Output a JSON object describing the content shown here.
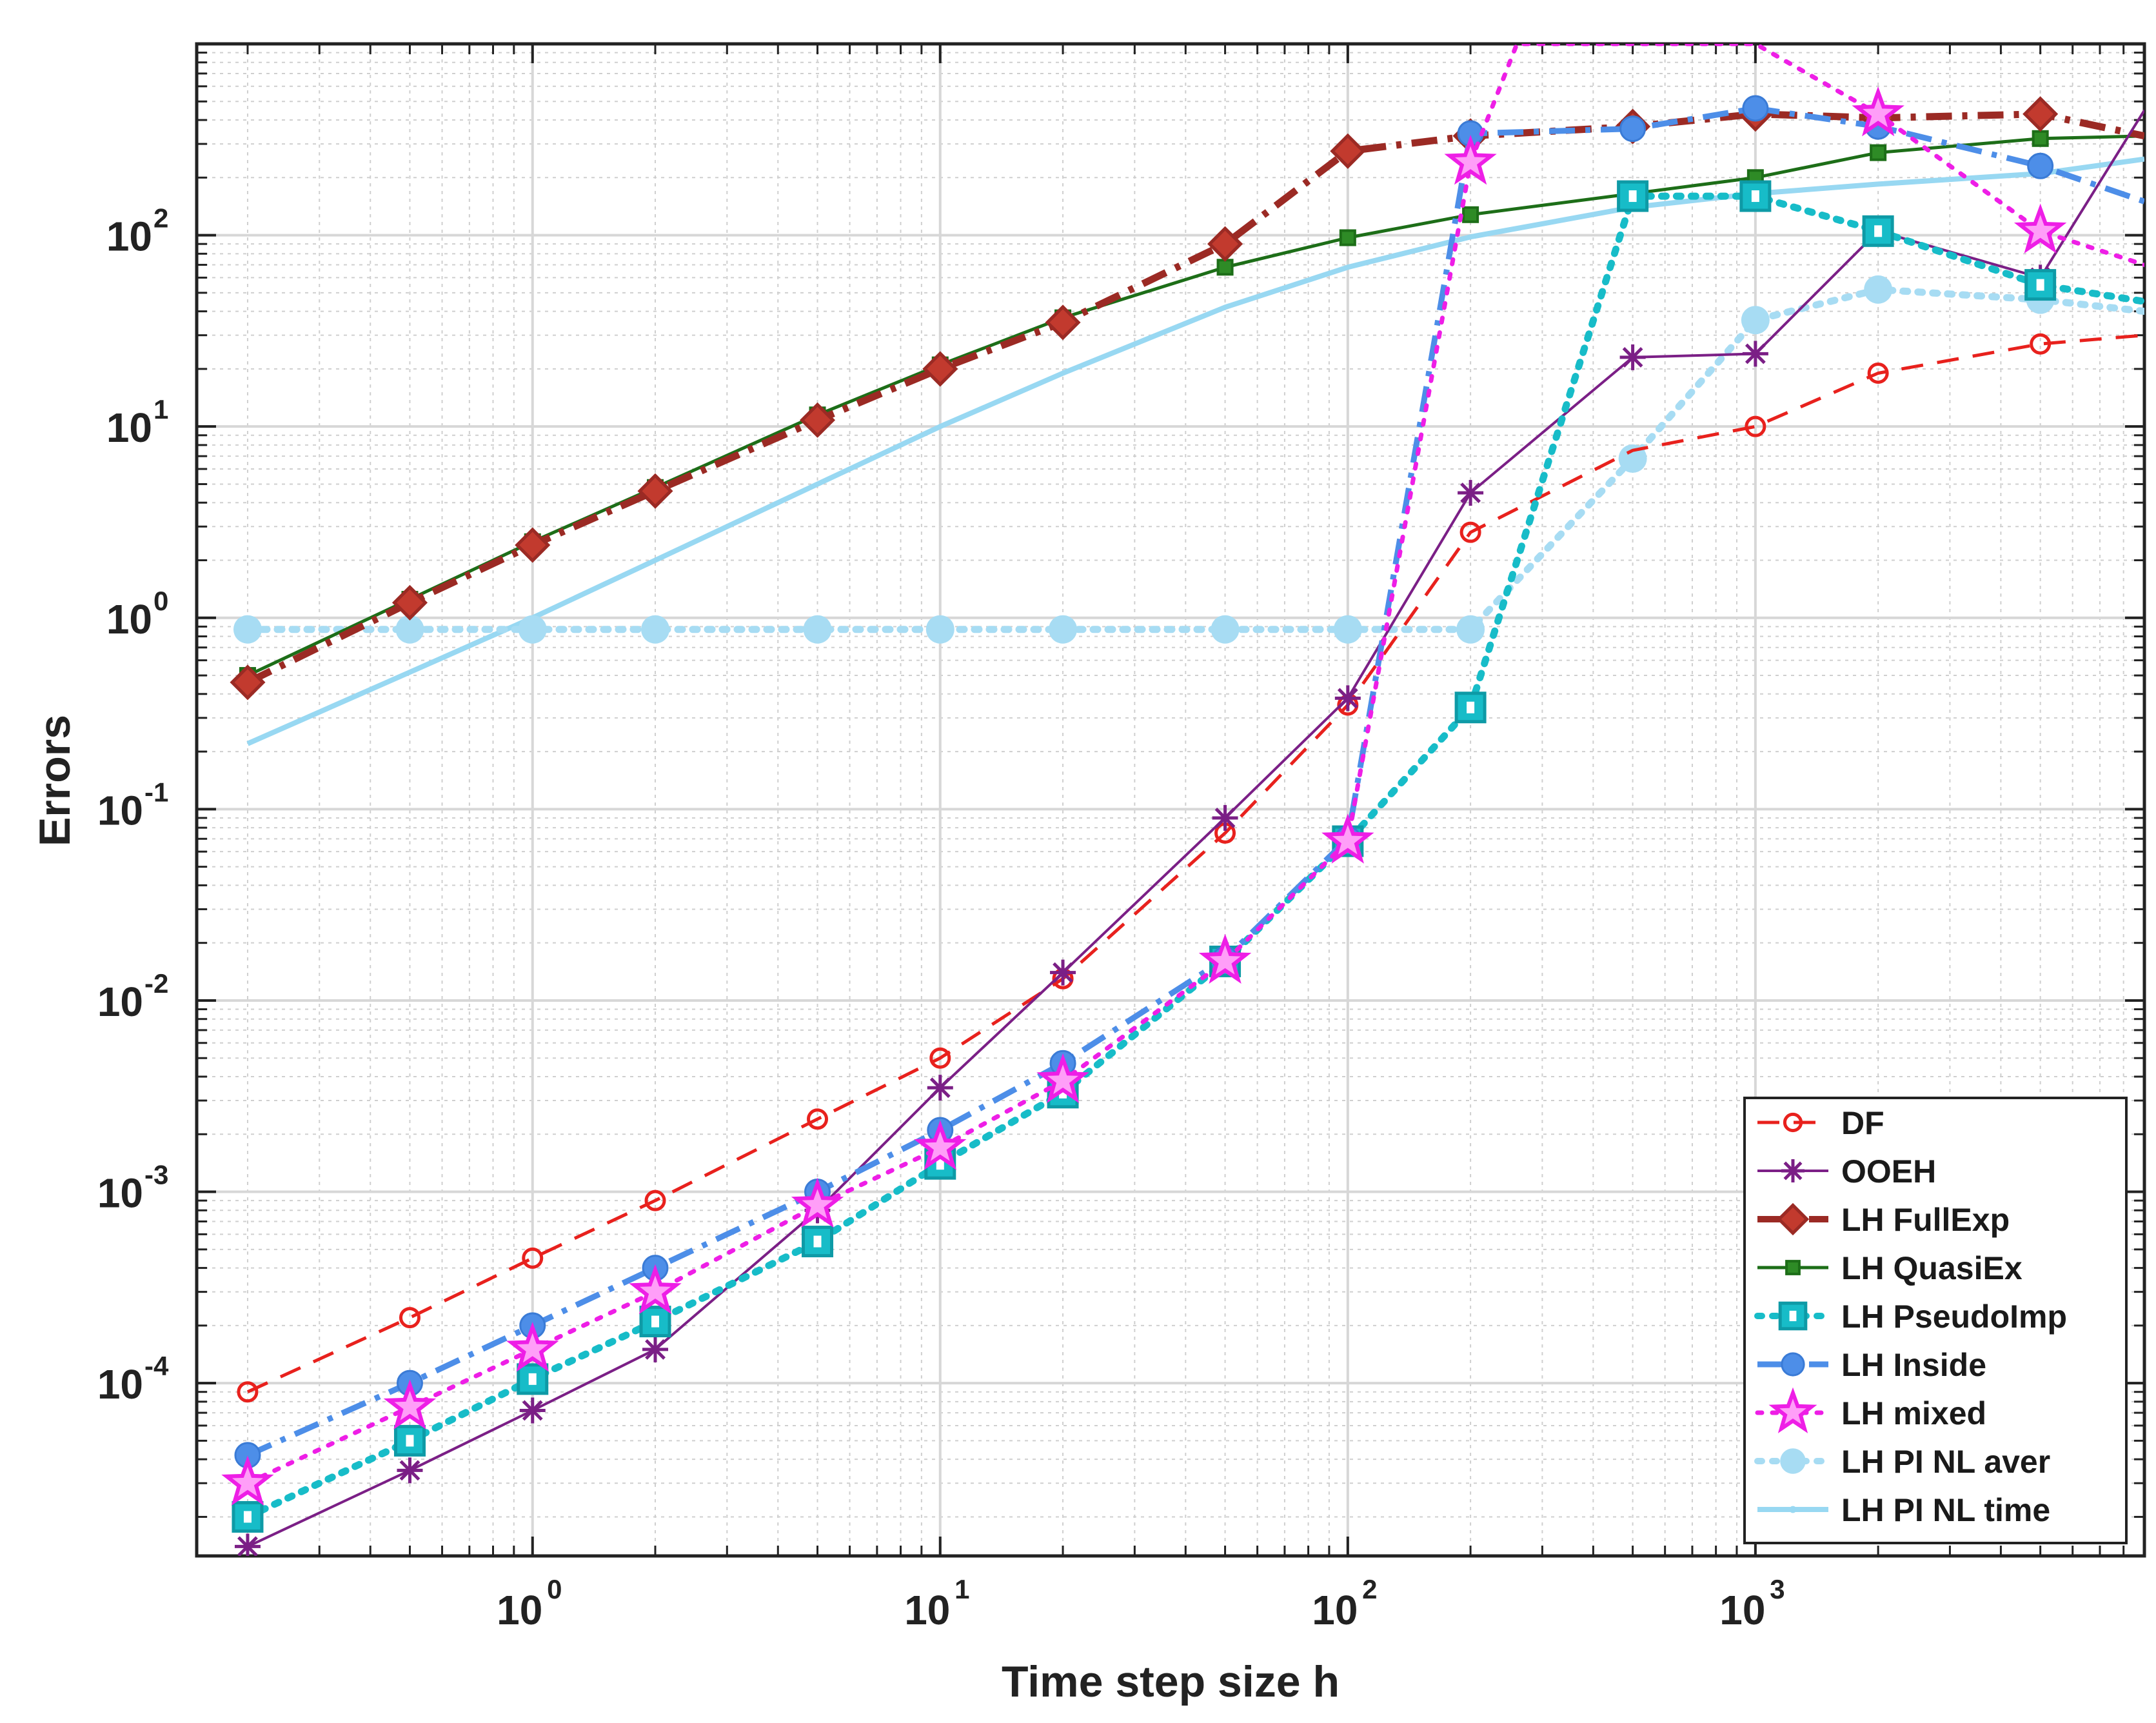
{
  "chart_data": {
    "type": "line",
    "title": "",
    "xlabel": "Time step size h",
    "ylabel": "Errors",
    "xscale": "log",
    "yscale": "log",
    "xlim": [
      0.15,
      9000
    ],
    "ylim": [
      1.25e-05,
      1000
    ],
    "grid": true,
    "minor_grid": true,
    "legend_position": "bottom-right",
    "x_ticks": [
      {
        "base": "10",
        "exp": "0",
        "value": 1
      },
      {
        "base": "10",
        "exp": "1",
        "value": 10
      },
      {
        "base": "10",
        "exp": "2",
        "value": 100
      },
      {
        "base": "10",
        "exp": "3",
        "value": 1000
      }
    ],
    "y_ticks": [
      {
        "base": "10",
        "exp": "-4",
        "value": 0.0001
      },
      {
        "base": "10",
        "exp": "-3",
        "value": 0.001
      },
      {
        "base": "10",
        "exp": "-2",
        "value": 0.01
      },
      {
        "base": "10",
        "exp": "-1",
        "value": 0.1
      },
      {
        "base": "10",
        "exp": "0",
        "value": 1
      },
      {
        "base": "10",
        "exp": "1",
        "value": 10
      },
      {
        "base": "10",
        "exp": "2",
        "value": 100
      }
    ],
    "series": [
      {
        "name": "DF",
        "color": "#e8211d",
        "dash": "dash",
        "marker": "circle",
        "width": 5,
        "x": [
          0.2,
          0.5,
          1,
          2,
          5,
          10,
          20,
          50,
          100,
          200,
          500,
          1000,
          2000,
          5000,
          9000
        ],
        "y": [
          9e-05,
          0.00022,
          0.00045,
          0.0009,
          0.0024,
          0.005,
          0.013,
          0.075,
          0.35,
          2.8,
          7.5,
          10,
          19,
          27,
          30
        ],
        "marked": [
          true,
          true,
          true,
          true,
          true,
          true,
          true,
          true,
          true,
          true,
          false,
          true,
          true,
          true,
          false
        ]
      },
      {
        "name": " OOEH",
        "color": "#7b1f86",
        "dash": "solid",
        "marker": "asterisk",
        "width": 4,
        "x": [
          0.2,
          0.5,
          1,
          2,
          5,
          10,
          20,
          50,
          100,
          200,
          500,
          1000,
          2000,
          5000,
          9000
        ],
        "y": [
          1.4e-05,
          3.5e-05,
          7.2e-05,
          0.00015,
          0.0008,
          0.0035,
          0.014,
          0.09,
          0.38,
          4.5,
          23,
          24,
          105,
          60,
          450
        ],
        "marked": [
          true,
          true,
          true,
          true,
          true,
          true,
          true,
          true,
          true,
          true,
          true,
          true,
          true,
          true,
          false
        ]
      },
      {
        "name": "LH FullExp",
        "color": "#9b2a24",
        "dash": "dashdot",
        "marker": "diamond",
        "width": 11,
        "x": [
          0.2,
          0.5,
          1,
          2,
          5,
          10,
          20,
          50,
          100,
          200,
          500,
          1000,
          2000,
          5000,
          9000
        ],
        "y": [
          0.46,
          1.2,
          2.4,
          4.6,
          10.8,
          20,
          35,
          90,
          275,
          330,
          370,
          430,
          410,
          430,
          330
        ],
        "marked": [
          true,
          true,
          true,
          true,
          true,
          true,
          true,
          true,
          true,
          true,
          true,
          true,
          true,
          true,
          false
        ]
      },
      {
        "name": "LH QuasiEx",
        "color": "#1d6e18",
        "dash": "solid",
        "marker": "square",
        "width": 5,
        "x": [
          0.2,
          0.5,
          1,
          2,
          5,
          10,
          20,
          50,
          100,
          200,
          500,
          1000,
          2000,
          5000,
          9000
        ],
        "y": [
          0.5,
          1.25,
          2.5,
          4.8,
          11.5,
          21,
          37,
          68,
          97,
          128,
          165,
          200,
          270,
          320,
          330
        ],
        "marked": [
          true,
          true,
          true,
          true,
          true,
          true,
          true,
          true,
          true,
          true,
          true,
          true,
          true,
          true,
          false
        ]
      },
      {
        "name": "LH PseudoImp",
        "color": "#17bcc8",
        "dash": "dot",
        "marker": "bigsquare",
        "width": 11,
        "x": [
          0.2,
          0.5,
          1,
          2,
          5,
          10,
          20,
          50,
          100,
          200,
          500,
          1000,
          2000,
          5000,
          9000
        ],
        "y": [
          2e-05,
          5e-05,
          0.000105,
          0.00021,
          0.00055,
          0.0014,
          0.0033,
          0.016,
          0.068,
          0.34,
          160,
          160,
          105,
          55,
          45
        ],
        "marked": [
          true,
          true,
          true,
          true,
          true,
          true,
          true,
          true,
          true,
          true,
          true,
          true,
          true,
          true,
          false
        ]
      },
      {
        "name": "LH Inside",
        "color": "#4d8ee8",
        "dash": "dashdot",
        "marker": "dot",
        "width": 9,
        "x": [
          0.2,
          0.5,
          1,
          2,
          5,
          10,
          20,
          50,
          100,
          200,
          500,
          1000,
          2000,
          5000,
          9000
        ],
        "y": [
          4.2e-05,
          0.0001,
          0.0002,
          0.0004,
          0.001,
          0.0021,
          0.0047,
          0.0165,
          0.07,
          340,
          360,
          460,
          370,
          230,
          150
        ],
        "marked": [
          true,
          true,
          true,
          true,
          true,
          true,
          true,
          true,
          true,
          true,
          true,
          true,
          true,
          true,
          false
        ]
      },
      {
        "name": "LH mixed",
        "color": "#ee1ee6",
        "dash": "dot",
        "marker": "star",
        "width": 7,
        "x": [
          0.2,
          0.5,
          1,
          2,
          5,
          10,
          20,
          50,
          100,
          200,
          260,
          1000,
          2000,
          5000,
          9000
        ],
        "y": [
          3e-05,
          7.5e-05,
          0.00015,
          0.0003,
          0.00085,
          0.0017,
          0.0038,
          0.016,
          0.068,
          240,
          1000,
          1000,
          430,
          105,
          70
        ],
        "marked": [
          true,
          true,
          true,
          true,
          true,
          true,
          true,
          true,
          true,
          true,
          false,
          false,
          true,
          true,
          false
        ]
      },
      {
        "name": "LH PI NL aver",
        "color": "#a7dcf3",
        "dash": "dot",
        "marker": "bigdot",
        "width": 11,
        "x": [
          0.2,
          0.5,
          1,
          2,
          5,
          10,
          20,
          50,
          100,
          200,
          500,
          1000,
          2000,
          5000,
          9000
        ],
        "y": [
          0.87,
          0.87,
          0.87,
          0.87,
          0.87,
          0.87,
          0.87,
          0.87,
          0.87,
          0.87,
          6.8,
          36,
          52,
          46,
          40
        ],
        "marked": [
          true,
          true,
          true,
          true,
          true,
          true,
          true,
          true,
          true,
          true,
          true,
          true,
          true,
          true,
          false
        ]
      },
      {
        "name": "LH PI NL time",
        "color": "#98d8f2",
        "dash": "solid",
        "marker": "smalldot",
        "width": 8,
        "x": [
          0.2,
          0.5,
          1,
          2,
          5,
          10,
          20,
          50,
          100,
          200,
          500,
          1000,
          2000,
          5000,
          9000
        ],
        "y": [
          0.22,
          0.52,
          1.0,
          2.0,
          5.0,
          10,
          19,
          42,
          68,
          98,
          140,
          165,
          185,
          210,
          250
        ],
        "marked": [
          false,
          false,
          false,
          false,
          false,
          false,
          false,
          false,
          false,
          false,
          false,
          false,
          false,
          false,
          false
        ]
      }
    ]
  }
}
